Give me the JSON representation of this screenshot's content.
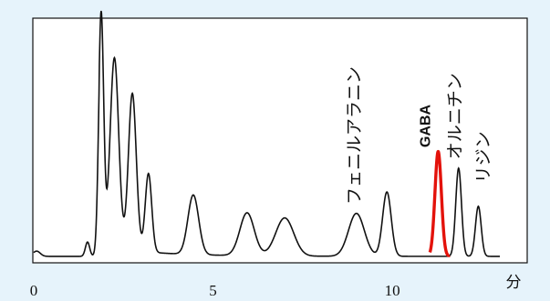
{
  "chart_data": {
    "type": "line",
    "xlabel": "分",
    "ylabel": "",
    "xlim": [
      0,
      13
    ],
    "ylim": [
      0,
      100
    ],
    "grid": false,
    "x_ticks": [
      0,
      5,
      10
    ],
    "x_tick_labels": [
      "0",
      "5",
      "10"
    ],
    "colors": {
      "background": "#e6f3fb",
      "plot_area": "#ffffff",
      "trace": "#111111",
      "highlight": "#e3120b"
    },
    "series": [
      {
        "name": "",
        "color": "#111111",
        "peaks": [
          {
            "x": 1.5,
            "height": 6,
            "width": 0.06
          },
          {
            "x": 1.88,
            "height": 98,
            "width": 0.07
          },
          {
            "x": 2.25,
            "height": 80,
            "width": 0.12
          },
          {
            "x": 2.75,
            "height": 66,
            "width": 0.11
          },
          {
            "x": 3.2,
            "height": 33,
            "width": 0.09
          },
          {
            "x": 4.45,
            "height": 25,
            "width": 0.15
          },
          {
            "x": 5.95,
            "height": 18,
            "width": 0.2
          },
          {
            "x": 7.0,
            "height": 16,
            "width": 0.25
          },
          {
            "x": 9.0,
            "height": 18,
            "width": 0.22
          },
          {
            "x": 9.85,
            "height": 27,
            "width": 0.12
          },
          {
            "x": 11.85,
            "height": 37,
            "width": 0.08
          },
          {
            "x": 12.4,
            "height": 21,
            "width": 0.08
          }
        ]
      },
      {
        "name": "GABA",
        "color": "#e3120b",
        "range": [
          11.05,
          11.6
        ],
        "peaks": [
          {
            "x": 11.28,
            "height": 44,
            "width": 0.09
          }
        ]
      }
    ],
    "annotations": [
      {
        "text": "フェニルアラニン",
        "x": 9.1,
        "y": 21
      },
      {
        "text": "GABA",
        "x": 11.15,
        "y": 45
      },
      {
        "text": "オルニチン",
        "x": 11.9,
        "y": 40
      },
      {
        "text": "リジン",
        "x": 12.7,
        "y": 30
      }
    ]
  }
}
